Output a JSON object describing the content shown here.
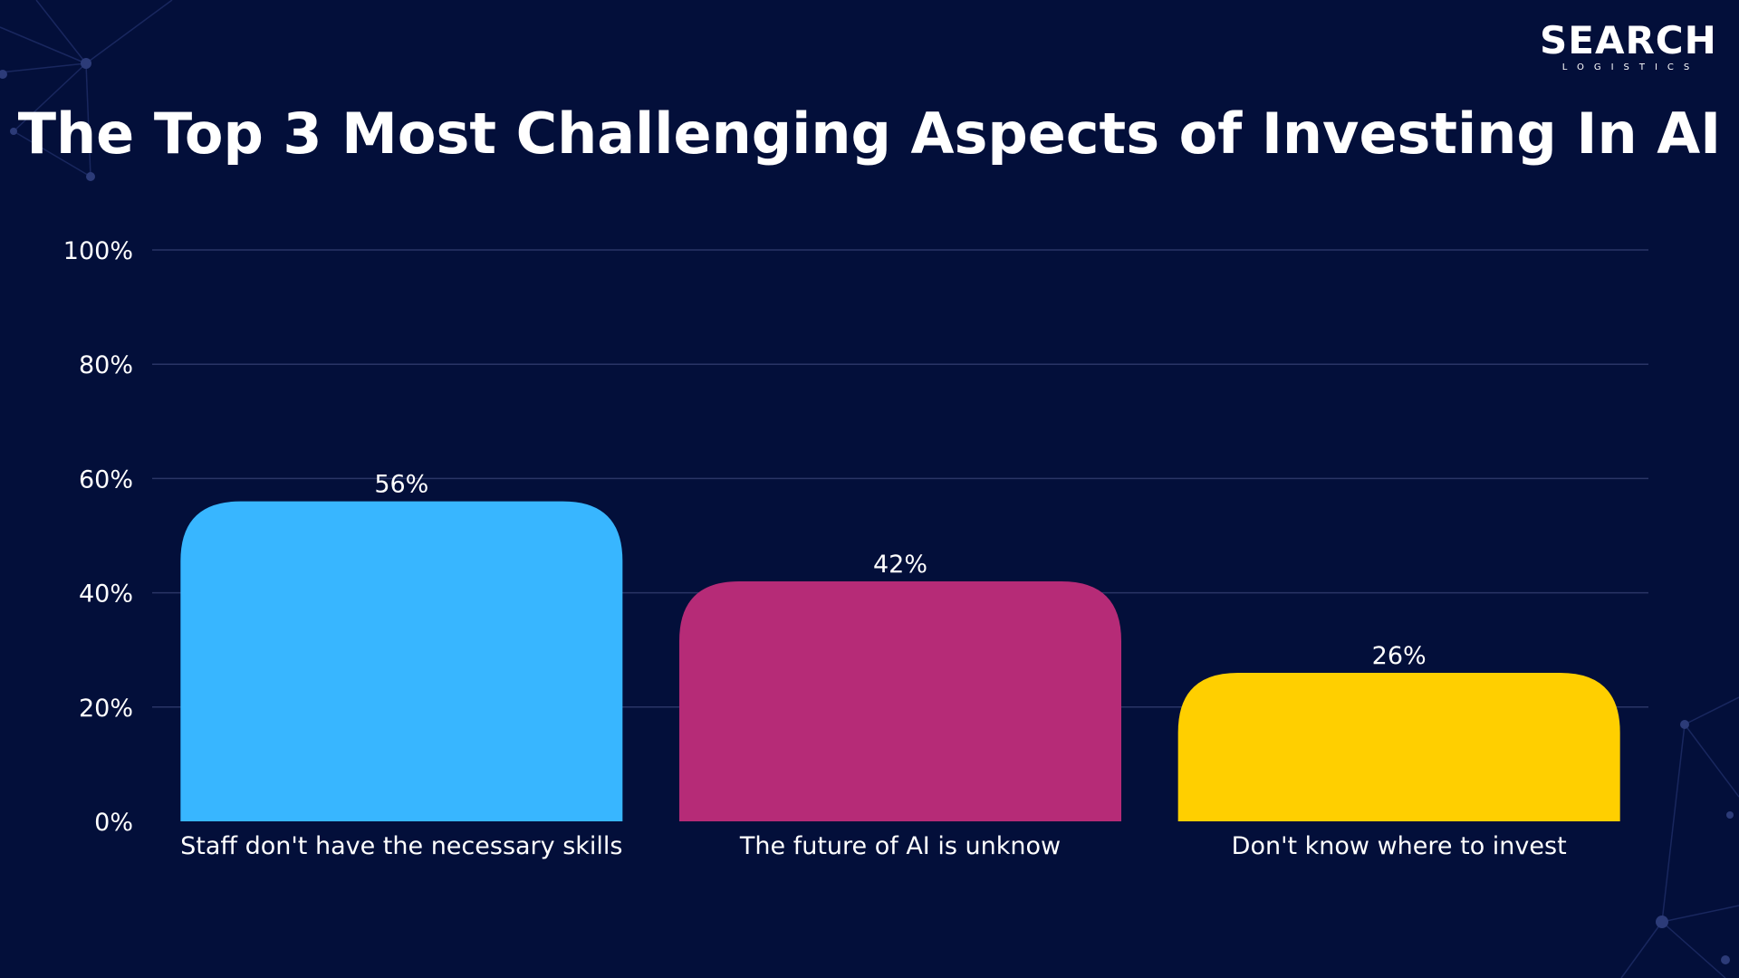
{
  "brand": {
    "name": "SEARCH",
    "tagline": "LOGISTICS"
  },
  "colors": {
    "background": "#030f3a",
    "grid": "#2a3566",
    "text": "#ffffff"
  },
  "chart_data": {
    "type": "bar",
    "title": "The Top 3 Most Challenging Aspects of Investing In AI",
    "categories": [
      "Staff don't have the necessary skills",
      "The future of AI is unknow",
      "Don't know where to invest"
    ],
    "values": [
      56,
      42,
      26
    ],
    "data_labels": [
      "56%",
      "42%",
      "26%"
    ],
    "bar_colors": [
      "#38b6ff",
      "#b62b77",
      "#ffcf00"
    ],
    "ylim": [
      0,
      100
    ],
    "y_ticks": [
      0,
      20,
      40,
      60,
      80,
      100
    ],
    "y_tick_labels": [
      "0%",
      "20%",
      "40%",
      "60%",
      "80%",
      "100%"
    ],
    "xlabel": "",
    "ylabel": "",
    "grid": true,
    "legend": false
  }
}
